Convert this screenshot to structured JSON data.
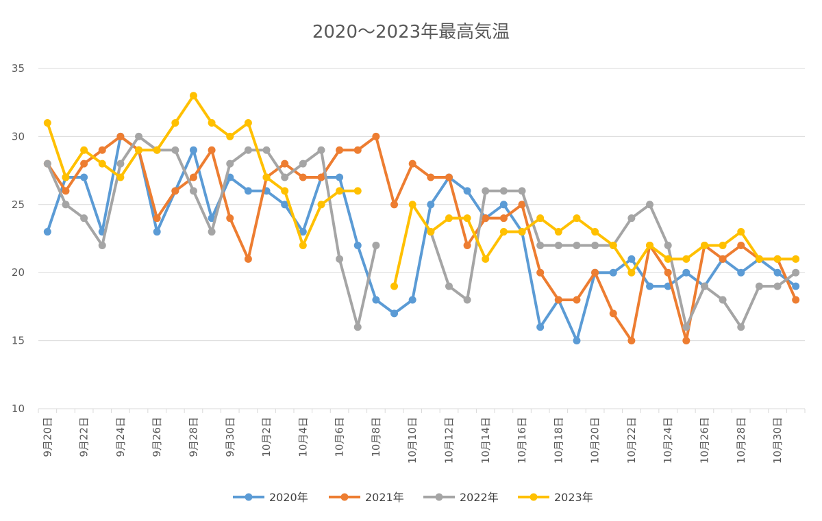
{
  "chart_data": {
    "type": "line",
    "title": "2020～2023年最高気温",
    "xlabel": "",
    "ylabel": "",
    "ylim": [
      10,
      35
    ],
    "yticks": [
      10,
      15,
      20,
      25,
      30,
      35
    ],
    "grid": true,
    "legend_position": "bottom",
    "categories": [
      "9月20日",
      "9月21日",
      "9月22日",
      "9月23日",
      "9月24日",
      "9月25日",
      "9月26日",
      "9月27日",
      "9月28日",
      "9月29日",
      "9月30日",
      "10月1日",
      "10月2日",
      "10月3日",
      "10月4日",
      "10月5日",
      "10月6日",
      "10月7日",
      "10月8日",
      "10月9日",
      "10月10日",
      "10月11日",
      "10月12日",
      "10月13日",
      "10月14日",
      "10月15日",
      "10月16日",
      "10月17日",
      "10月18日",
      "10月19日",
      "10月20日",
      "10月21日",
      "10月22日",
      "10月23日",
      "10月24日",
      "10月25日",
      "10月26日",
      "10月27日",
      "10月28日",
      "10月29日",
      "10月30日",
      "10月31日"
    ],
    "x_tick_labels": [
      "9月20日",
      "9月22日",
      "9月24日",
      "9月26日",
      "9月28日",
      "9月30日",
      "10月2日",
      "10月4日",
      "10月6日",
      "10月8日",
      "10月10日",
      "10月12日",
      "10月14日",
      "10月16日",
      "10月18日",
      "10月20日",
      "10月22日",
      "10月24日",
      "10月26日",
      "10月28日",
      "10月30日"
    ],
    "series": [
      {
        "name": "2020年",
        "color": "#5B9BD5",
        "values": [
          23,
          27,
          27,
          23,
          30,
          29,
          23,
          26,
          29,
          24,
          27,
          26,
          26,
          25,
          23,
          27,
          27,
          22,
          18,
          17,
          18,
          25,
          27,
          26,
          24,
          25,
          23,
          16,
          18,
          15,
          20,
          20,
          21,
          19,
          19,
          20,
          19,
          21,
          20,
          21,
          20,
          19
        ]
      },
      {
        "name": "2021年",
        "color": "#ED7D31",
        "values": [
          28,
          26,
          28,
          29,
          30,
          29,
          24,
          26,
          27,
          29,
          24,
          21,
          27,
          28,
          27,
          27,
          29,
          29,
          30,
          25,
          28,
          27,
          27,
          22,
          24,
          24,
          25,
          20,
          18,
          18,
          20,
          17,
          15,
          22,
          20,
          15,
          22,
          21,
          22,
          21,
          21,
          18
        ]
      },
      {
        "name": "2022年",
        "color": "#A5A5A5",
        "values": [
          28,
          25,
          24,
          22,
          28,
          30,
          29,
          29,
          26,
          23,
          28,
          29,
          29,
          27,
          28,
          29,
          21,
          16,
          22,
          null,
          null,
          23,
          19,
          18,
          26,
          26,
          26,
          22,
          22,
          22,
          22,
          22,
          24,
          25,
          22,
          16,
          19,
          18,
          16,
          19,
          19,
          20
        ]
      },
      {
        "name": "2023年",
        "color": "#FFC000",
        "values": [
          31,
          27,
          29,
          28,
          27,
          29,
          29,
          31,
          33,
          31,
          30,
          31,
          27,
          26,
          22,
          25,
          26,
          26,
          null,
          19,
          25,
          23,
          24,
          24,
          21,
          23,
          23,
          24,
          23,
          24,
          23,
          22,
          20,
          22,
          21,
          21,
          22,
          22,
          23,
          21,
          21,
          21
        ]
      }
    ]
  }
}
